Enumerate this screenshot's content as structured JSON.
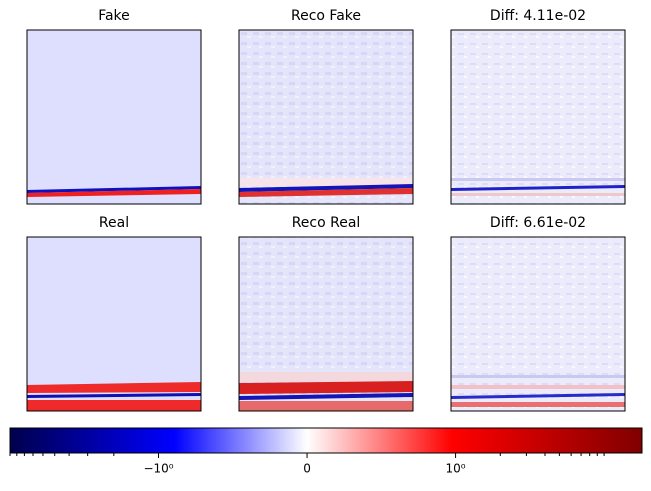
{
  "chart_data": {
    "type": "image-grid",
    "panels": [
      {
        "title": "Fake"
      },
      {
        "title": "Reco Fake"
      },
      {
        "title": "Diff: 4.11e-02"
      },
      {
        "title": "Real"
      },
      {
        "title": "Reco Real"
      },
      {
        "title": "Diff: 6.61e-02"
      }
    ],
    "colorbar": {
      "scale": "symlog",
      "linthresh": 1,
      "xlim": [
        -10,
        18
      ],
      "xticks": [
        {
          "value": -1,
          "label": "−10⁰"
        },
        0,
        {
          "value": 1,
          "label": "10⁰"
        }
      ],
      "minor_xticks": [
        -10,
        -9,
        -8,
        -7,
        -6,
        -5,
        -4,
        -3,
        -2,
        2,
        3,
        4,
        5,
        6,
        7,
        8,
        9,
        10
      ]
    }
  }
}
